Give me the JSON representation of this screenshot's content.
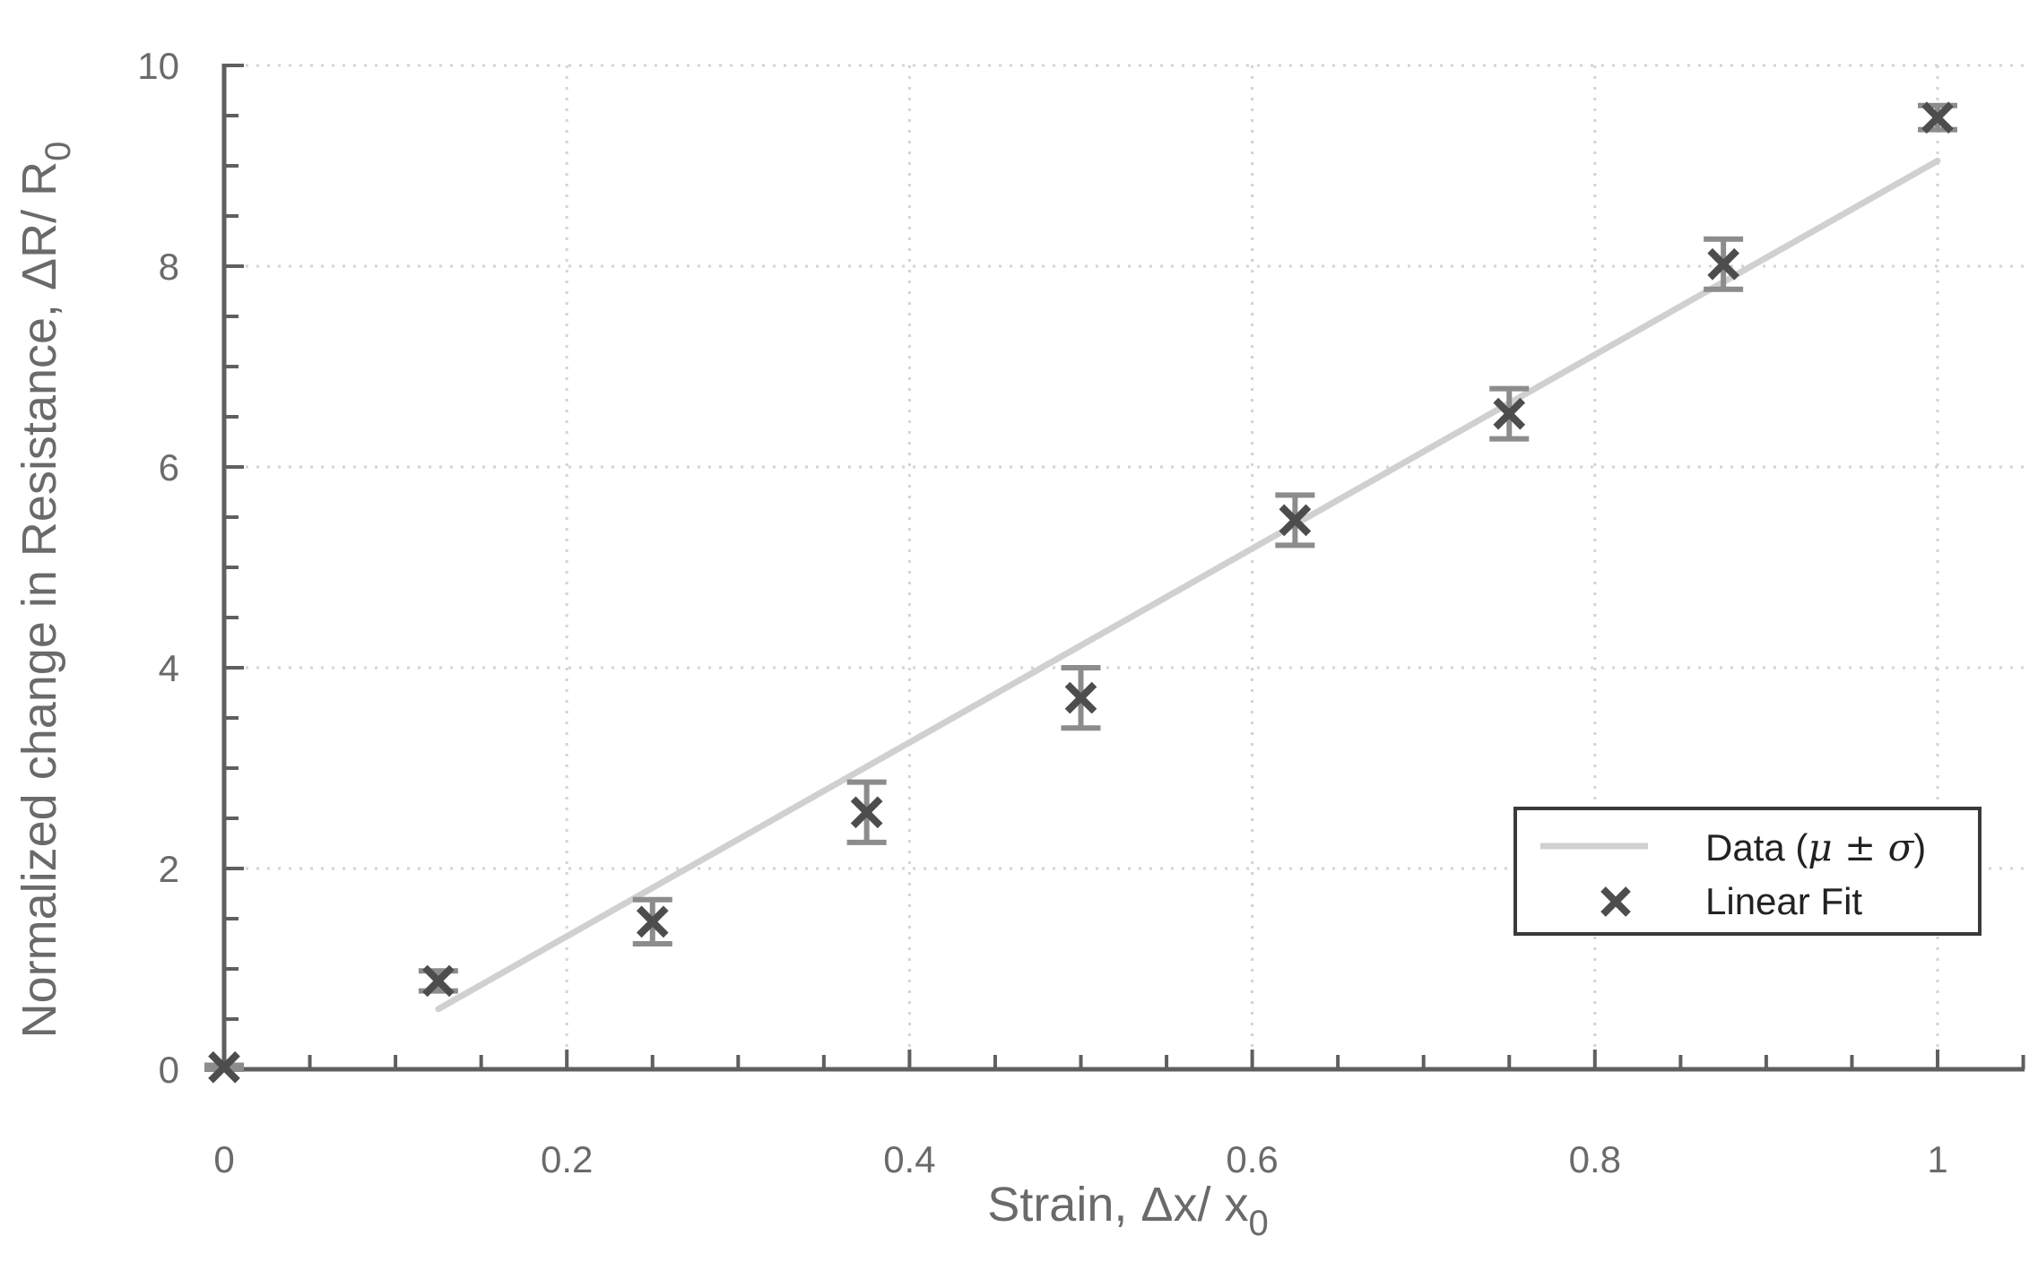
{
  "chart_data": {
    "type": "scatter",
    "xlabel": "Strain, Δx/ x",
    "xlabel_sub": "0",
    "ylabel": "Normalized change in Resistance, ΔR/ R",
    "ylabel_sub": "0",
    "xlim": [
      0,
      1.05
    ],
    "ylim": [
      0,
      10
    ],
    "x_ticks": [
      0,
      0.2,
      0.4,
      0.6,
      0.8,
      1
    ],
    "x_tick_labels": [
      "0",
      "0.2",
      "0.4",
      "0.6",
      "0.8",
      "1"
    ],
    "y_ticks": [
      0,
      2,
      4,
      6,
      8,
      10
    ],
    "y_tick_labels": [
      "0",
      "2",
      "4",
      "6",
      "8",
      "10"
    ],
    "grid": "dotted",
    "legend_position": "bottom-right",
    "legend": {
      "line_label_prefix": "Data (",
      "line_label_math": "μ ± σ",
      "line_label_suffix": ")",
      "marker_label": "Linear Fit"
    },
    "series": [
      {
        "kind": "points_with_error",
        "x": [
          0,
          0.125,
          0.25,
          0.375,
          0.5,
          0.625,
          0.75,
          0.875,
          1
        ],
        "y": [
          0.02,
          0.88,
          1.47,
          2.56,
          3.7,
          5.47,
          6.53,
          8.02,
          9.48
        ],
        "err": [
          0.02,
          0.1,
          0.22,
          0.3,
          0.3,
          0.25,
          0.25,
          0.25,
          0.12
        ]
      },
      {
        "kind": "line",
        "x": [
          0.125,
          1
        ],
        "y": [
          0.6,
          9.05
        ]
      }
    ],
    "colors": {
      "axis": "#5f5f5f",
      "grid": "#d3d3d3",
      "marker": "#4d4d4d",
      "errorbar": "#8c8c8c",
      "fit_line": "#d0d0d0",
      "legend_border": "#3a3a3a"
    }
  }
}
